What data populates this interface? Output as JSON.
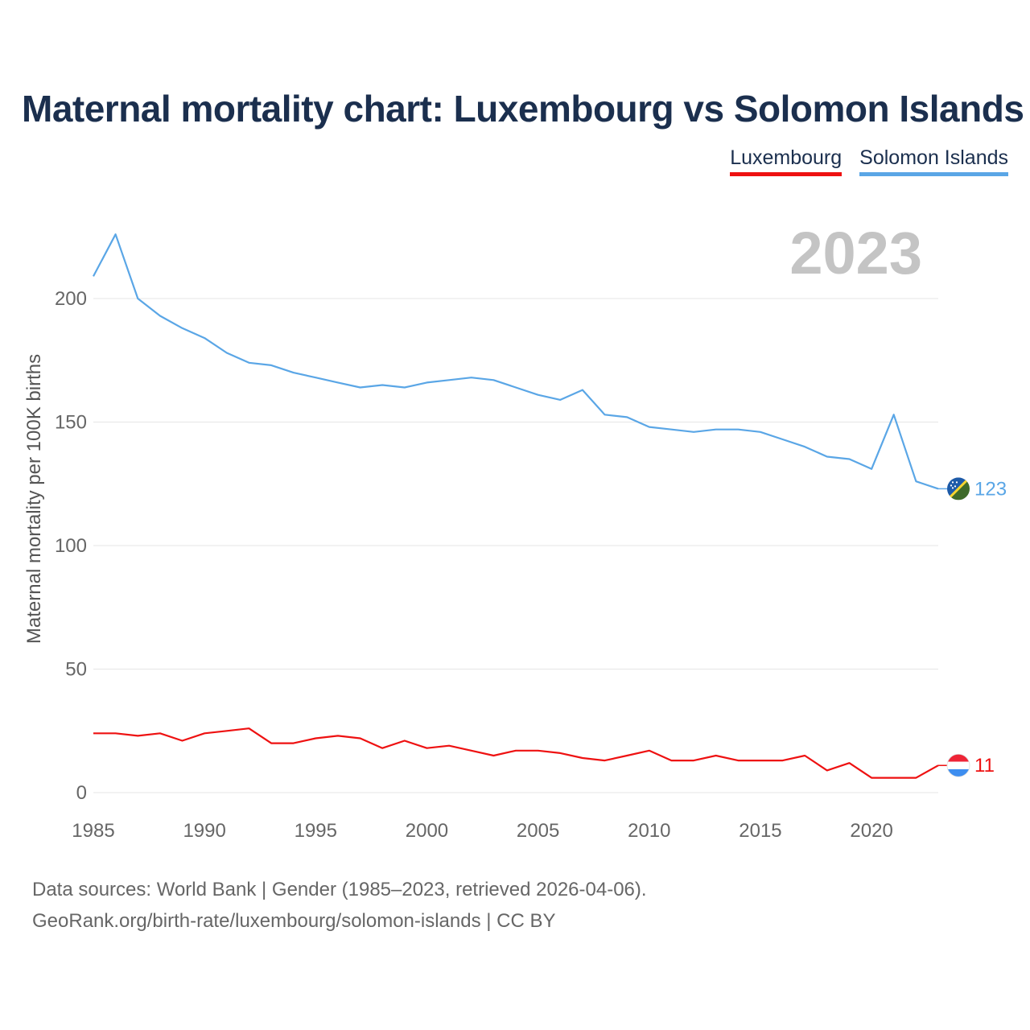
{
  "title": "Maternal mortality chart: Luxembourg vs Solomon Islands",
  "legend": [
    {
      "label": "Luxembourg",
      "color": "#ee1111"
    },
    {
      "label": "Solomon Islands",
      "color": "#5aa6e6"
    }
  ],
  "year_label": "2023",
  "footer": {
    "line1": "Data sources: World Bank | Gender (1985–2023, retrieved 2026-04-06).",
    "line2": "GeoRank.org/birth-rate/luxembourg/solomon-islands | CC BY"
  },
  "chart_data": {
    "type": "line",
    "title": "Maternal mortality chart: Luxembourg vs Solomon Islands",
    "xlabel": "",
    "ylabel": "Maternal mortality per 100K births",
    "xlim": [
      1985,
      2023
    ],
    "ylim": [
      0,
      230
    ],
    "xticks": [
      1985,
      1990,
      1995,
      2000,
      2005,
      2010,
      2015,
      2020
    ],
    "yticks": [
      0,
      50,
      100,
      150,
      200
    ],
    "grid": true,
    "x": [
      1985,
      1986,
      1987,
      1988,
      1989,
      1990,
      1991,
      1992,
      1993,
      1994,
      1995,
      1996,
      1997,
      1998,
      1999,
      2000,
      2001,
      2002,
      2003,
      2004,
      2005,
      2006,
      2007,
      2008,
      2009,
      2010,
      2011,
      2012,
      2013,
      2014,
      2015,
      2016,
      2017,
      2018,
      2019,
      2020,
      2021,
      2022,
      2023
    ],
    "series": [
      {
        "name": "Solomon Islands",
        "color": "#5aa6e6",
        "end_label": "123",
        "values": [
          209,
          226,
          200,
          193,
          188,
          184,
          178,
          174,
          173,
          170,
          168,
          166,
          164,
          165,
          164,
          166,
          167,
          168,
          167,
          164,
          161,
          159,
          163,
          153,
          152,
          148,
          147,
          146,
          147,
          147,
          146,
          143,
          140,
          136,
          135,
          131,
          153,
          126,
          123
        ]
      },
      {
        "name": "Luxembourg",
        "color": "#ee1111",
        "end_label": "11",
        "values": [
          24,
          24,
          23,
          24,
          21,
          24,
          25,
          26,
          20,
          20,
          22,
          23,
          22,
          18,
          21,
          18,
          19,
          17,
          15,
          17,
          17,
          16,
          14,
          13,
          15,
          17,
          13,
          13,
          15,
          13,
          13,
          13,
          15,
          9,
          12,
          6,
          6,
          6,
          11
        ]
      }
    ]
  }
}
